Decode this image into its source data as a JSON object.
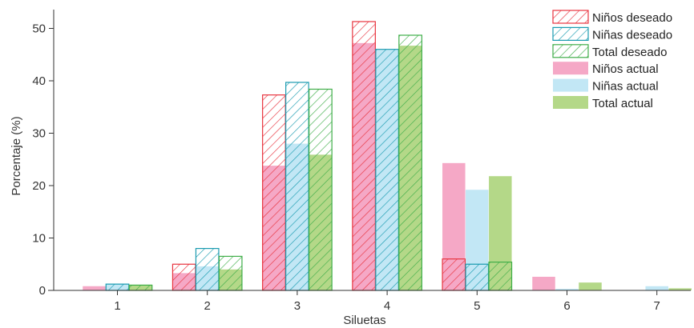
{
  "chart_data": {
    "type": "bar",
    "title": "",
    "xlabel": "Siluetas",
    "ylabel": "Porcentaje (%)",
    "categories": [
      "1",
      "2",
      "3",
      "4",
      "5",
      "6",
      "7"
    ],
    "yticks": [
      0,
      10,
      20,
      30,
      40,
      50
    ],
    "ylim": [
      0,
      53
    ],
    "grid": false,
    "legend_position": "top-right",
    "groups": [
      {
        "name": "Niños",
        "color": "#e8343f",
        "fill_color": "#f5a8c6"
      },
      {
        "name": "Niñas",
        "color": "#1a9bb0",
        "fill_color": "#c2e7f5"
      },
      {
        "name": "Total",
        "color": "#3fae49",
        "fill_color": "#b4d888"
      }
    ],
    "series": [
      {
        "name": "Niños deseado",
        "group": 0,
        "style": "hatched",
        "values": [
          0,
          5.0,
          37.3,
          51.3,
          6.0,
          0,
          0
        ]
      },
      {
        "name": "Niñas deseado",
        "group": 1,
        "style": "hatched",
        "values": [
          1.2,
          8.0,
          39.7,
          46.0,
          5.0,
          0,
          0
        ]
      },
      {
        "name": "Total deseado",
        "group": 2,
        "style": "hatched",
        "values": [
          1.0,
          6.5,
          38.4,
          48.7,
          5.4,
          0,
          0
        ]
      },
      {
        "name": "Niños actual",
        "group": 0,
        "style": "solid",
        "values": [
          0.8,
          3.3,
          23.8,
          47.2,
          24.3,
          2.6,
          0
        ]
      },
      {
        "name": "Niñas actual",
        "group": 1,
        "style": "solid",
        "values": [
          1.3,
          4.6,
          28.0,
          45.9,
          19.2,
          0.3,
          0.8
        ]
      },
      {
        "name": "Total actual",
        "group": 2,
        "style": "solid",
        "values": [
          1.1,
          4.0,
          25.9,
          46.7,
          21.8,
          1.5,
          0.4
        ]
      }
    ]
  }
}
